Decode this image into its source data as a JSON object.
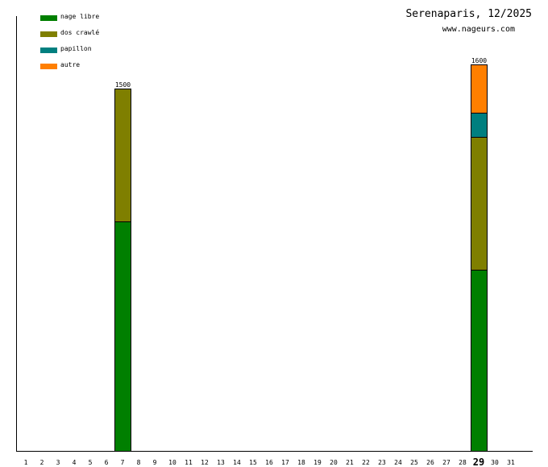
{
  "chart_data": {
    "type": "bar",
    "stacked": true,
    "title": "Serenaparis, 12/2025",
    "subtitle": "www.nageurs.com",
    "categories": [
      "1",
      "2",
      "3",
      "4",
      "5",
      "6",
      "7",
      "8",
      "9",
      "10",
      "11",
      "12",
      "13",
      "14",
      "15",
      "16",
      "17",
      "18",
      "19",
      "20",
      "21",
      "22",
      "23",
      "24",
      "25",
      "26",
      "27",
      "28",
      "29",
      "30",
      "31"
    ],
    "highlighted_category": "29",
    "ylim": [
      0,
      1600
    ],
    "grid": false,
    "legend_position": "top-left",
    "series": [
      {
        "name": "nage libre",
        "color": "#007f00",
        "values": [
          0,
          0,
          0,
          0,
          0,
          0,
          950,
          0,
          0,
          0,
          0,
          0,
          0,
          0,
          0,
          0,
          0,
          0,
          0,
          0,
          0,
          0,
          0,
          0,
          0,
          0,
          0,
          0,
          750,
          0,
          0
        ]
      },
      {
        "name": "dos crawlé",
        "color": "#7f7f00",
        "values": [
          0,
          0,
          0,
          0,
          0,
          0,
          550,
          0,
          0,
          0,
          0,
          0,
          0,
          0,
          0,
          0,
          0,
          0,
          0,
          0,
          0,
          0,
          0,
          0,
          0,
          0,
          0,
          0,
          550,
          0,
          0
        ]
      },
      {
        "name": "papillon",
        "color": "#007f7f",
        "values": [
          0,
          0,
          0,
          0,
          0,
          0,
          0,
          0,
          0,
          0,
          0,
          0,
          0,
          0,
          0,
          0,
          0,
          0,
          0,
          0,
          0,
          0,
          0,
          0,
          0,
          0,
          0,
          0,
          100,
          0,
          0
        ]
      },
      {
        "name": "autre",
        "color": "#ff7f00",
        "values": [
          0,
          0,
          0,
          0,
          0,
          0,
          0,
          0,
          0,
          0,
          0,
          0,
          0,
          0,
          0,
          0,
          0,
          0,
          0,
          0,
          0,
          0,
          0,
          0,
          0,
          0,
          0,
          0,
          200,
          0,
          0
        ]
      }
    ],
    "totals_labels": [
      {
        "category": "7",
        "label": "1500"
      },
      {
        "category": "29",
        "label": "1600"
      }
    ]
  }
}
